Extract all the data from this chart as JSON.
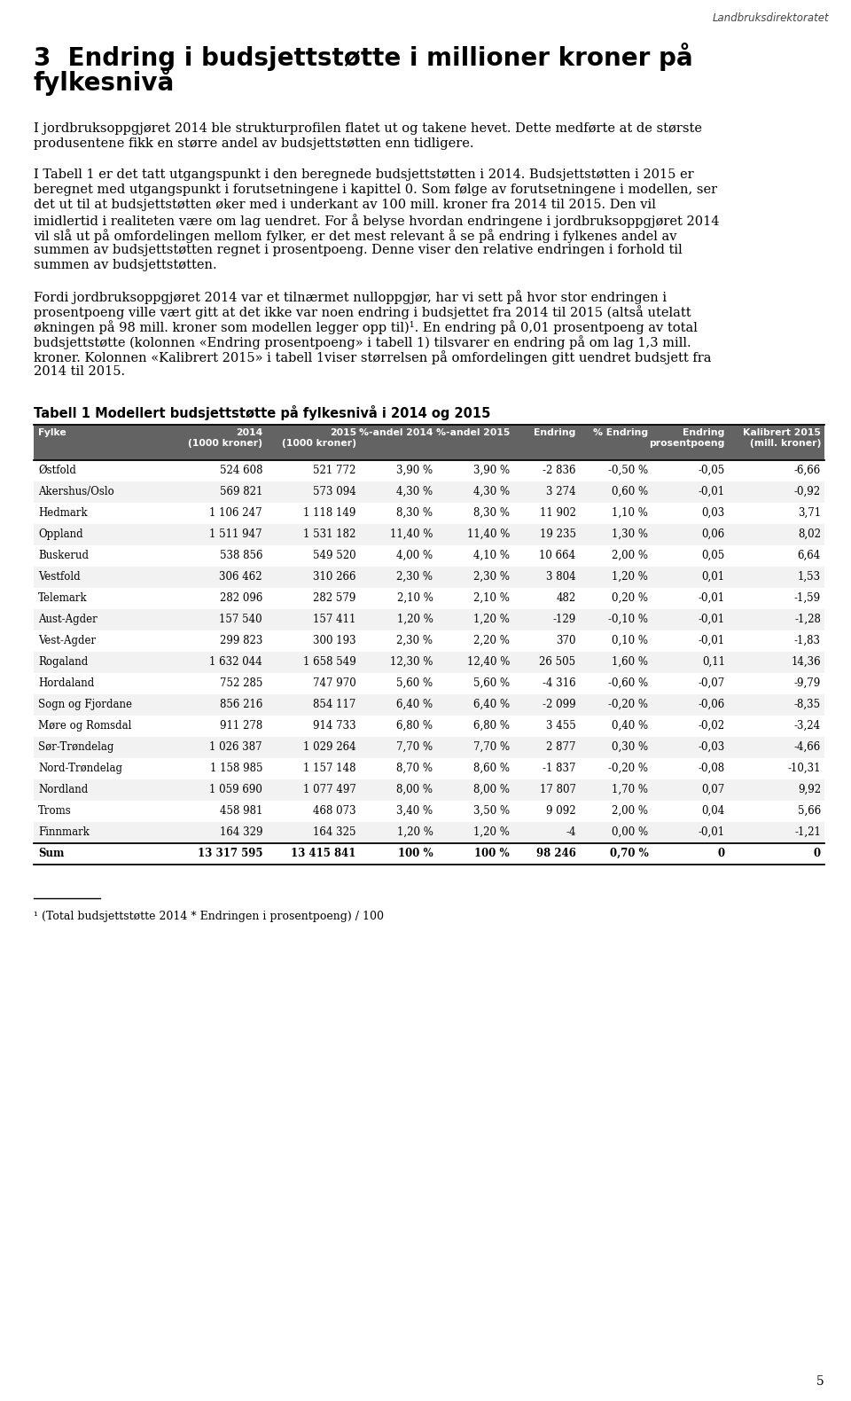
{
  "header_text": "Landbruksdirektoratet",
  "title_line1": "3  Endring i budsjettstøtte i millioner kroner på",
  "title_line2": "fylkesnivå",
  "para1_lines": [
    "I jordbruksoppgjøret 2014 ble strukturprofilen flatet ut og takene hevet. Dette medførte at de største",
    "produsentene fikk en større andel av budsjettstøtten enn tidligere."
  ],
  "para2_lines": [
    "I Tabell 1 er det tatt utgangspunkt i den beregnede budsjettstøtten i 2014. Budsjettstøtten i 2015 er",
    "beregnet med utgangspunkt i forutsetningene i kapittel 0. Som følge av forutsetningene i modellen, ser",
    "det ut til at budsjettstøtten øker med i underkant av 100 mill. kroner fra 2014 til 2015. Den vil",
    "imidlertid i realiteten være om lag uendret. For å belyse hvordan endringene i jordbruksoppgjøret 2014",
    "vil slå ut på omfordelingen mellom fylker, er det mest relevant å se på endring i fylkenes andel av",
    "summen av budsjettstøtten regnet i prosentpoeng. Denne viser den relative endringen i forhold til",
    "summen av budsjettstøtten."
  ],
  "para3_lines": [
    "Fordi jordbruksoppgjøret 2014 var et tilnærmet nulloppgjør, har vi sett på hvor stor endringen i",
    "prosentpoeng ville vært gitt at det ikke var noen endring i budsjettet fra 2014 til 2015 (altså utelatt",
    "økningen på 98 mill. kroner som modellen legger opp til)¹. En endring på 0,01 prosentpoeng av total",
    "budsjettstøtte (kolonnen «Endring prosentpoeng» i tabell 1) tilsvarer en endring på om lag 1,3 mill.",
    "kroner. Kolonnen «Kalibrert 2015» i tabell 1viser størrelsen på omfordelingen gitt uendret budsjett fra",
    "2014 til 2015."
  ],
  "table_title": "Tabell 1 Modellert budsjettstøtte på fylkesnivå i 2014 og 2015",
  "col_headers": [
    "Fylke",
    "2014\n(1000 kroner)",
    "2015\n(1000 kroner)",
    "%-andel 2014",
    "%-andel 2015",
    "Endring",
    "% Endring",
    "Endring\nprosentpoeng",
    "Kalibrert 2015\n(mill. kroner)"
  ],
  "col_aligns": [
    "left",
    "right",
    "right",
    "right",
    "right",
    "right",
    "right",
    "right",
    "right"
  ],
  "rows": [
    [
      "Østfold",
      "524 608",
      "521 772",
      "3,90 %",
      "3,90 %",
      "-2 836",
      "-0,50 %",
      "-0,05",
      "-6,66"
    ],
    [
      "Akershus/Oslo",
      "569 821",
      "573 094",
      "4,30 %",
      "4,30 %",
      "3 274",
      "0,60 %",
      "-0,01",
      "-0,92"
    ],
    [
      "Hedmark",
      "1 106 247",
      "1 118 149",
      "8,30 %",
      "8,30 %",
      "11 902",
      "1,10 %",
      "0,03",
      "3,71"
    ],
    [
      "Oppland",
      "1 511 947",
      "1 531 182",
      "11,40 %",
      "11,40 %",
      "19 235",
      "1,30 %",
      "0,06",
      "8,02"
    ],
    [
      "Buskerud",
      "538 856",
      "549 520",
      "4,00 %",
      "4,10 %",
      "10 664",
      "2,00 %",
      "0,05",
      "6,64"
    ],
    [
      "Vestfold",
      "306 462",
      "310 266",
      "2,30 %",
      "2,30 %",
      "3 804",
      "1,20 %",
      "0,01",
      "1,53"
    ],
    [
      "Telemark",
      "282 096",
      "282 579",
      "2,10 %",
      "2,10 %",
      "482",
      "0,20 %",
      "-0,01",
      "-1,59"
    ],
    [
      "Aust-Agder",
      "157 540",
      "157 411",
      "1,20 %",
      "1,20 %",
      "-129",
      "-0,10 %",
      "-0,01",
      "-1,28"
    ],
    [
      "Vest-Agder",
      "299 823",
      "300 193",
      "2,30 %",
      "2,20 %",
      "370",
      "0,10 %",
      "-0,01",
      "-1,83"
    ],
    [
      "Rogaland",
      "1 632 044",
      "1 658 549",
      "12,30 %",
      "12,40 %",
      "26 505",
      "1,60 %",
      "0,11",
      "14,36"
    ],
    [
      "Hordaland",
      "752 285",
      "747 970",
      "5,60 %",
      "5,60 %",
      "-4 316",
      "-0,60 %",
      "-0,07",
      "-9,79"
    ],
    [
      "Sogn og Fjordane",
      "856 216",
      "854 117",
      "6,40 %",
      "6,40 %",
      "-2 099",
      "-0,20 %",
      "-0,06",
      "-8,35"
    ],
    [
      "Møre og Romsdal",
      "911 278",
      "914 733",
      "6,80 %",
      "6,80 %",
      "3 455",
      "0,40 %",
      "-0,02",
      "-3,24"
    ],
    [
      "Sør-Trøndelag",
      "1 026 387",
      "1 029 264",
      "7,70 %",
      "7,70 %",
      "2 877",
      "0,30 %",
      "-0,03",
      "-4,66"
    ],
    [
      "Nord-Trøndelag",
      "1 158 985",
      "1 157 148",
      "8,70 %",
      "8,60 %",
      "-1 837",
      "-0,20 %",
      "-0,08",
      "-10,31"
    ],
    [
      "Nordland",
      "1 059 690",
      "1 077 497",
      "8,00 %",
      "8,00 %",
      "17 807",
      "1,70 %",
      "0,07",
      "9,92"
    ],
    [
      "Troms",
      "458 981",
      "468 073",
      "3,40 %",
      "3,50 %",
      "9 092",
      "2,00 %",
      "0,04",
      "5,66"
    ],
    [
      "Finnmark",
      "164 329",
      "164 325",
      "1,20 %",
      "1,20 %",
      "-4",
      "0,00 %",
      "-0,01",
      "-1,21"
    ]
  ],
  "sum_row": [
    "Sum",
    "13 317 595",
    "13 415 841",
    "100 %",
    "100 %",
    "98 246",
    "0,70 %",
    "0",
    "0"
  ],
  "footnote": "¹ (Total budsjettstøtte 2014 * Endringen i prosentpoeng) / 100",
  "page_number": "5",
  "bg_color": "#ffffff",
  "text_color": "#000000",
  "header_bg": "#636363",
  "header_fg": "#ffffff",
  "table_line_color": "#000000",
  "col_widths_rel": [
    130,
    88,
    88,
    72,
    72,
    62,
    68,
    72,
    90
  ]
}
